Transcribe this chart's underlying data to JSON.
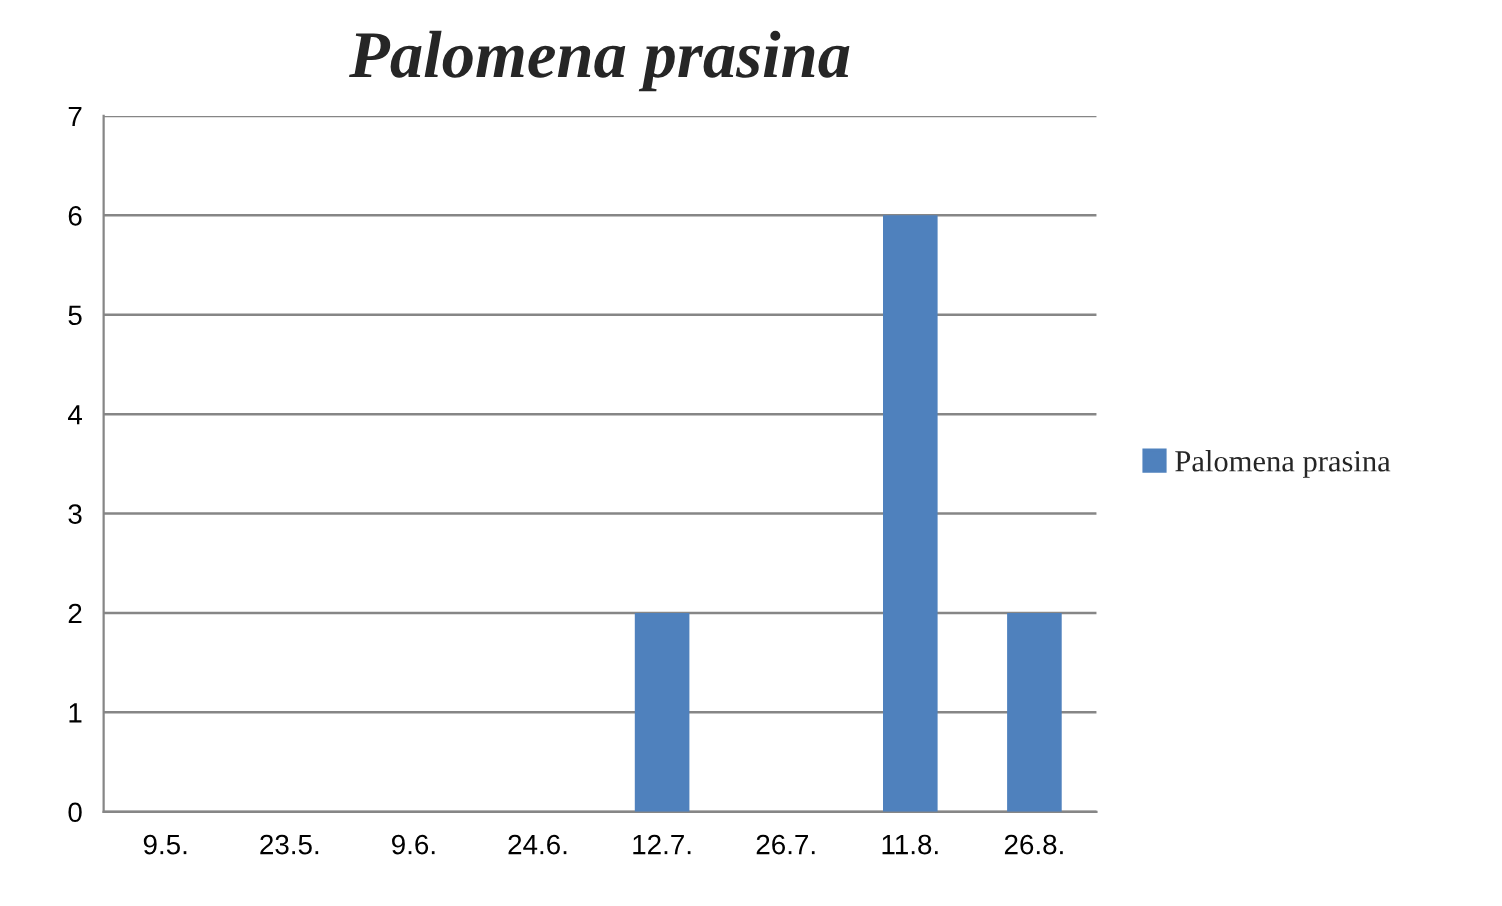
{
  "chart_data": {
    "type": "bar",
    "title": "Palomena prasina",
    "categories": [
      "9.5.",
      "23.5.",
      "9.6.",
      "24.6.",
      "12.7.",
      "26.7.",
      "11.8.",
      "26.8."
    ],
    "series": [
      {
        "name": "Palomena prasina",
        "color": "#4f81bd",
        "values": [
          0,
          0,
          0,
          0,
          2,
          0,
          6,
          2
        ]
      }
    ],
    "ylim": [
      0,
      7
    ],
    "yticks": [
      0,
      1,
      2,
      3,
      4,
      5,
      6,
      7
    ],
    "grid": "y",
    "legend": "right"
  }
}
